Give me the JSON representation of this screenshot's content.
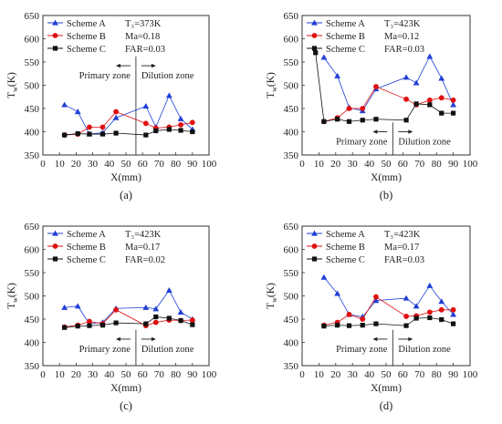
{
  "chart_data": [
    {
      "type": "line",
      "panel_label": "(a)",
      "xlabel": "X(mm)",
      "ylabel_main": "T",
      "ylabel_sub": "w",
      "ylabel_unit": "(K)",
      "xlim": [
        0,
        100
      ],
      "ylim": [
        350,
        650
      ],
      "xticks": [
        "0",
        "10",
        "20",
        "30",
        "40",
        "50",
        "60",
        "70",
        "80",
        "90",
        "100"
      ],
      "yticks": [
        "350",
        "400",
        "450",
        "500",
        "550",
        "600",
        "650"
      ],
      "divider_x": 56,
      "zone_left": "Primary zone",
      "zone_right": "Dilution zone",
      "zone_y": 542,
      "conditions": [
        "T₃=373K",
        "Ma=0.18",
        "FAR=0.03"
      ],
      "series": [
        {
          "name": "Scheme A",
          "color": "#1f3fd6",
          "marker": "triangle",
          "x": [
            13,
            21,
            28,
            36,
            44,
            62,
            68,
            76,
            83,
            90
          ],
          "y": [
            458,
            443,
            395,
            398,
            430,
            455,
            410,
            478,
            428,
            405
          ]
        },
        {
          "name": "Scheme B",
          "color": "#e01010",
          "marker": "circle",
          "x": [
            13,
            21,
            28,
            36,
            44,
            62,
            68,
            76,
            83,
            90
          ],
          "y": [
            393,
            395,
            410,
            410,
            443,
            418,
            408,
            410,
            415,
            420
          ]
        },
        {
          "name": "Scheme C",
          "color": "#111111",
          "marker": "square",
          "x": [
            13,
            21,
            28,
            36,
            44,
            62,
            68,
            76,
            83,
            90
          ],
          "y": [
            393,
            396,
            395,
            395,
            397,
            393,
            402,
            405,
            403,
            400
          ]
        }
      ]
    },
    {
      "type": "line",
      "panel_label": "(b)",
      "xlabel": "X(mm)",
      "ylabel_main": "T",
      "ylabel_sub": "w",
      "ylabel_unit": "(K)",
      "xlim": [
        0,
        100
      ],
      "ylim": [
        350,
        650
      ],
      "xticks": [
        "0",
        "10",
        "20",
        "30",
        "40",
        "50",
        "60",
        "70",
        "80",
        "90",
        "100"
      ],
      "yticks": [
        "350",
        "400",
        "450",
        "500",
        "550",
        "600",
        "650"
      ],
      "divider_x": 54,
      "zone_left": "Primary zone",
      "zone_right": "Dilution zone",
      "zone_y": 400,
      "conditions": [
        "T₃=423K",
        "Ma=0.12",
        "FAR=0.03"
      ],
      "series": [
        {
          "name": "Scheme A",
          "color": "#1f3fd6",
          "marker": "triangle",
          "x": [
            13,
            21,
            28,
            36,
            44,
            62,
            68,
            76,
            83,
            90
          ],
          "y": [
            560,
            520,
            452,
            445,
            492,
            517,
            505,
            562,
            515,
            458
          ]
        },
        {
          "name": "Scheme B",
          "color": "#e01010",
          "marker": "circle",
          "x": [
            13,
            21,
            28,
            36,
            44,
            62,
            68,
            76,
            83,
            90
          ],
          "y": [
            422,
            430,
            450,
            450,
            497,
            470,
            458,
            468,
            473,
            468
          ]
        },
        {
          "name": "Scheme C",
          "color": "#111111",
          "marker": "square",
          "x": [
            8,
            13,
            21,
            28,
            36,
            44,
            62,
            68,
            76,
            83,
            90
          ],
          "y": [
            570,
            422,
            427,
            422,
            425,
            427,
            425,
            460,
            458,
            440,
            440
          ]
        }
      ]
    },
    {
      "type": "line",
      "panel_label": "(c)",
      "xlabel": "X(mm)",
      "ylabel_main": "T",
      "ylabel_sub": "w",
      "ylabel_unit": "(K)",
      "xlim": [
        0,
        100
      ],
      "ylim": [
        350,
        650
      ],
      "xticks": [
        "0",
        "10",
        "20",
        "30",
        "40",
        "50",
        "60",
        "70",
        "80",
        "90",
        "100"
      ],
      "yticks": [
        "350",
        "400",
        "450",
        "500",
        "550",
        "600",
        "650"
      ],
      "divider_x": 56,
      "zone_left": "Primary zone",
      "zone_right": "Dilution zone",
      "zone_y": 407,
      "conditions": [
        "T₃=423K",
        "Ma=0.17",
        "FAR=0.02"
      ],
      "series": [
        {
          "name": "Scheme A",
          "color": "#1f3fd6",
          "marker": "triangle",
          "x": [
            13,
            21,
            28,
            36,
            44,
            62,
            68,
            76,
            83,
            90
          ],
          "y": [
            475,
            478,
            440,
            443,
            473,
            475,
            472,
            512,
            465,
            450
          ]
        },
        {
          "name": "Scheme B",
          "color": "#e01010",
          "marker": "circle",
          "x": [
            13,
            21,
            28,
            36,
            44,
            62,
            68,
            76,
            83,
            90
          ],
          "y": [
            433,
            437,
            445,
            440,
            470,
            436,
            443,
            448,
            447,
            448
          ]
        },
        {
          "name": "Scheme C",
          "color": "#111111",
          "marker": "square",
          "x": [
            13,
            21,
            28,
            36,
            44,
            62,
            68,
            76,
            83,
            90
          ],
          "y": [
            432,
            435,
            436,
            437,
            442,
            440,
            455,
            452,
            447,
            438
          ]
        }
      ]
    },
    {
      "type": "line",
      "panel_label": "(d)",
      "xlabel": "X(mm)",
      "ylabel_main": "T",
      "ylabel_sub": "w",
      "ylabel_unit": "(K)",
      "xlim": [
        0,
        100
      ],
      "ylim": [
        350,
        650
      ],
      "xticks": [
        "0",
        "10",
        "20",
        "30",
        "40",
        "50",
        "60",
        "70",
        "80",
        "90",
        "100"
      ],
      "yticks": [
        "350",
        "400",
        "450",
        "500",
        "550",
        "600",
        "650"
      ],
      "divider_x": 54,
      "zone_left": "Primary zone",
      "zone_right": "Dilution zone",
      "zone_y": 407,
      "conditions": [
        "T₃=423K",
        "Ma=0.17",
        "FAR=0.03"
      ],
      "series": [
        {
          "name": "Scheme A",
          "color": "#1f3fd6",
          "marker": "triangle",
          "x": [
            13,
            21,
            28,
            36,
            44,
            62,
            68,
            76,
            83,
            90
          ],
          "y": [
            540,
            505,
            460,
            455,
            490,
            495,
            478,
            522,
            488,
            460
          ]
        },
        {
          "name": "Scheme B",
          "color": "#e01010",
          "marker": "circle",
          "x": [
            13,
            21,
            28,
            36,
            44,
            62,
            68,
            76,
            83,
            90
          ],
          "y": [
            437,
            443,
            460,
            450,
            498,
            456,
            457,
            465,
            470,
            470
          ]
        },
        {
          "name": "Scheme C",
          "color": "#111111",
          "marker": "square",
          "x": [
            13,
            21,
            28,
            36,
            44,
            62,
            68,
            76,
            83,
            90
          ],
          "y": [
            435,
            437,
            436,
            437,
            440,
            436,
            452,
            453,
            449,
            440
          ]
        }
      ]
    }
  ]
}
